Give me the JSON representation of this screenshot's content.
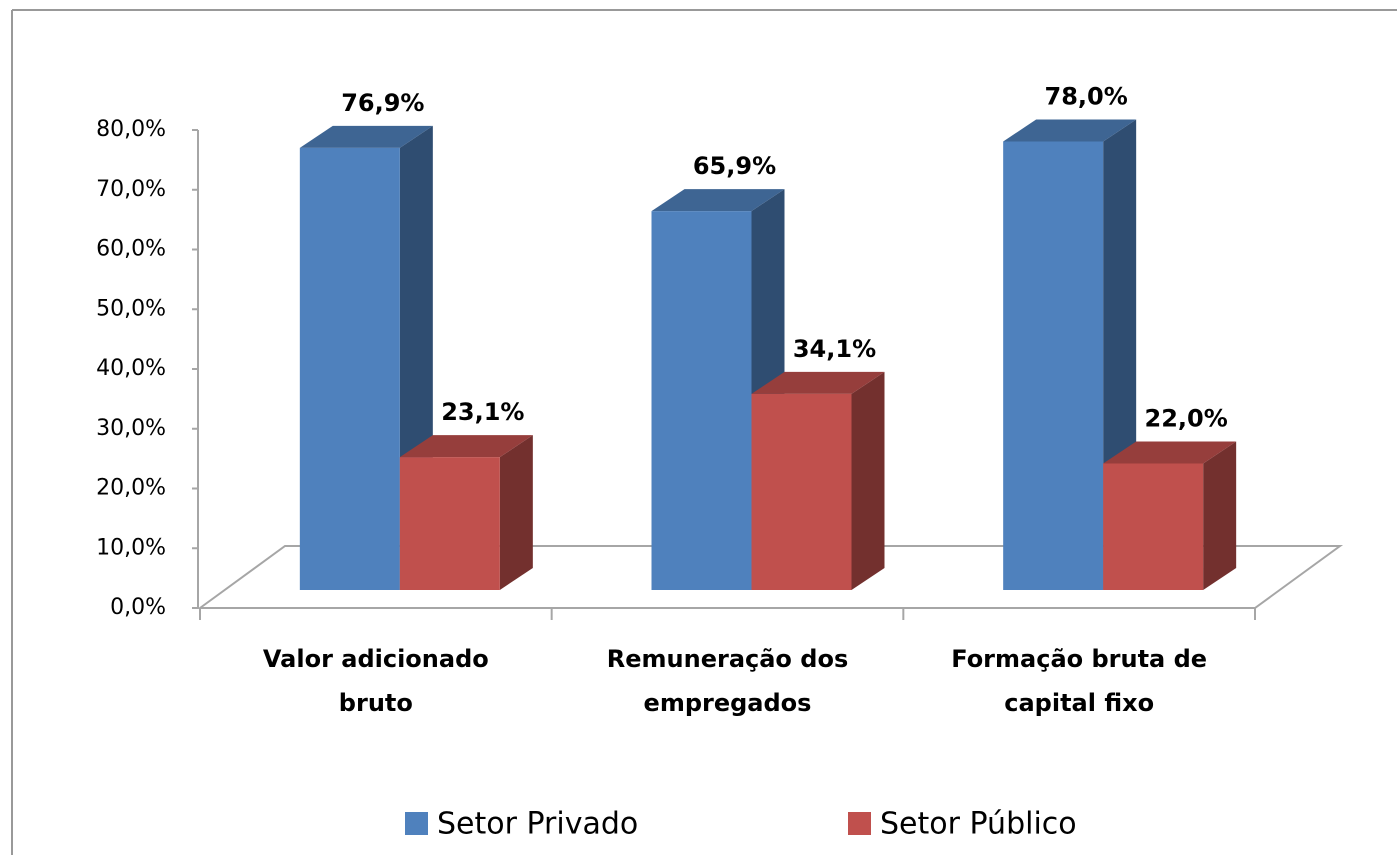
{
  "chart_data": {
    "type": "bar3d",
    "categories": [
      "Valor adicionado bruto",
      "Remuneração dos empregados",
      "Formação bruta de capital fixo"
    ],
    "series": [
      {
        "name": "Setor Privado",
        "color": "#4f81bd",
        "values": [
          76.9,
          65.9,
          78.0
        ],
        "value_labels": [
          "76,9%",
          "65,9%",
          "78,0%"
        ]
      },
      {
        "name": "Setor Público",
        "color": "#c0504d",
        "values": [
          23.1,
          34.1,
          22.0
        ],
        "value_labels": [
          "23,1%",
          "34,1%",
          "22,0%"
        ]
      }
    ],
    "ylim": [
      0,
      80
    ],
    "yticks": [
      {
        "value": 0,
        "label": "0,0%"
      },
      {
        "value": 10,
        "label": "10,0%"
      },
      {
        "value": 20,
        "label": "20,0%"
      },
      {
        "value": 30,
        "label": "30,0%"
      },
      {
        "value": 40,
        "label": "40,0%"
      },
      {
        "value": 50,
        "label": "50,0%"
      },
      {
        "value": 60,
        "label": "60,0%"
      },
      {
        "value": 70,
        "label": "70,0%"
      },
      {
        "value": 80,
        "label": "80,0%"
      }
    ],
    "legend": "bottom"
  }
}
